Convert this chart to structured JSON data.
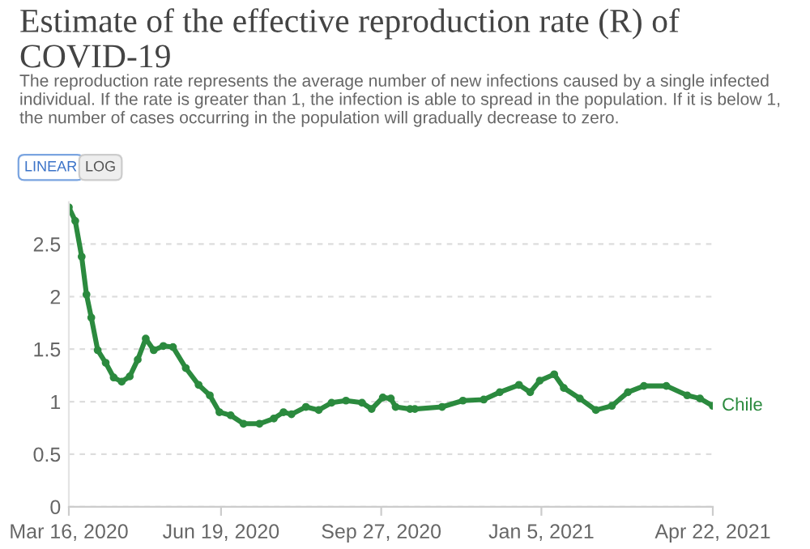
{
  "chart_data": {
    "type": "line",
    "title": "Estimate of the effective reproduction rate (R) of COVID-19",
    "subtitle": "The reproduction rate represents the average number of new infections caused by a single infected individual. If the rate is greater than 1, the infection is able to spread in the population. If it is below 1, the number of cases occurring in the population will gradually decrease to zero.",
    "annotations": [
      "LINEAR",
      "LOG"
    ],
    "x": [
      "2020-03-16",
      "2020-03-20",
      "2020-03-24",
      "2020-03-27",
      "2020-03-30",
      "2020-04-03",
      "2020-04-08",
      "2020-04-13",
      "2020-04-18",
      "2020-04-23",
      "2020-04-28",
      "2020-05-03",
      "2020-05-08",
      "2020-05-14",
      "2020-05-20",
      "2020-05-28",
      "2020-06-05",
      "2020-06-12",
      "2020-06-18",
      "2020-06-25",
      "2020-07-03",
      "2020-07-13",
      "2020-07-22",
      "2020-07-28",
      "2020-08-02",
      "2020-08-11",
      "2020-08-19",
      "2020-08-27",
      "2020-09-05",
      "2020-09-15",
      "2020-09-21",
      "2020-09-28",
      "2020-10-03",
      "2020-10-06",
      "2020-10-15",
      "2020-10-18",
      "2020-11-04",
      "2020-11-17",
      "2020-11-30",
      "2020-12-10",
      "2020-12-22",
      "2020-12-29",
      "2021-01-04",
      "2021-01-13",
      "2021-01-19",
      "2021-01-29",
      "2021-02-08",
      "2021-02-18",
      "2021-02-28",
      "2021-03-10",
      "2021-03-24",
      "2021-04-06",
      "2021-04-14",
      "2021-04-22"
    ],
    "series": [
      {
        "name": "Chile",
        "color": "#2b8a3e",
        "values": [
          2.85,
          2.72,
          2.38,
          2.02,
          1.8,
          1.49,
          1.37,
          1.23,
          1.19,
          1.24,
          1.4,
          1.6,
          1.49,
          1.53,
          1.52,
          1.32,
          1.16,
          1.06,
          0.9,
          0.87,
          0.79,
          0.79,
          0.84,
          0.9,
          0.88,
          0.95,
          0.92,
          0.99,
          1.01,
          0.99,
          0.93,
          1.04,
          1.03,
          0.95,
          0.93,
          0.93,
          0.95,
          1.01,
          1.02,
          1.09,
          1.16,
          1.09,
          1.2,
          1.26,
          1.13,
          1.03,
          0.92,
          0.96,
          1.09,
          1.15,
          1.15,
          1.06,
          1.03,
          0.96
        ]
      }
    ],
    "xlim": [
      "2020-03-16",
      "2021-04-22"
    ],
    "xticks": [
      {
        "value": "2020-03-16",
        "label": "Mar 16, 2020"
      },
      {
        "value": "2020-06-19",
        "label": "Jun 19, 2020"
      },
      {
        "value": "2020-09-27",
        "label": "Sep 27, 2020"
      },
      {
        "value": "2021-01-05",
        "label": "Jan 5, 2021"
      },
      {
        "value": "2021-04-22",
        "label": "Apr 22, 2021"
      }
    ],
    "ylim": [
      0,
      2.9
    ],
    "yticks": [
      0,
      0.5,
      1,
      1.5,
      2,
      2.5
    ],
    "grid": "y",
    "marker": "circle",
    "line_style": "solid",
    "legend": false
  }
}
